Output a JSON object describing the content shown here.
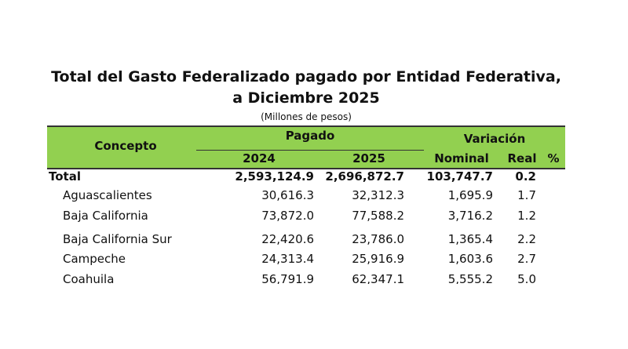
{
  "title": [
    "Total del Gasto Federalizado pagado por Entidad Federativa,",
    "a Diciembre 2025"
  ],
  "subtitle": "(Millones de pesos)",
  "header": {
    "concepto": "Concepto",
    "pagado": "Pagado",
    "variacion": "Variación",
    "y2024": "2024",
    "y2025": "2025",
    "nominal": "Nominal",
    "real": "Real",
    "percent": "%"
  },
  "table": {
    "rows": [
      [
        "Total",
        "2,593,124.9",
        "2,696,872.7",
        "103,747.7",
        "0.2"
      ],
      [
        "Aguascalientes",
        "30,616.3",
        "32,312.3",
        "1,695.9",
        "1.7"
      ],
      [
        "Baja California",
        "73,872.0",
        "77,588.2",
        "3,716.2",
        "1.2"
      ],
      [
        "Baja California Sur",
        "22,420.6",
        "23,786.0",
        "1,365.4",
        "2.2"
      ],
      [
        "Campeche",
        "24,313.4",
        "25,916.9",
        "1,603.6",
        "2.7"
      ],
      [
        "Coahuila",
        "56,791.9",
        "62,347.1",
        "5,555.2",
        "5.0"
      ]
    ]
  }
}
